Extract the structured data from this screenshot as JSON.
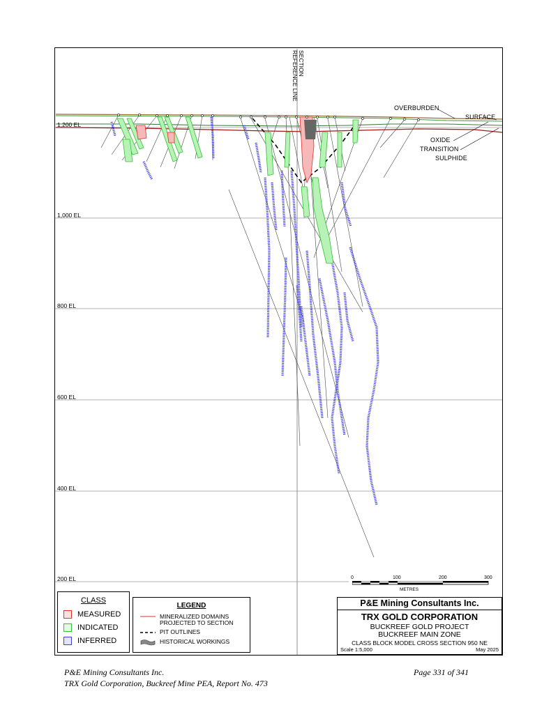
{
  "section": {
    "reference_line_label": [
      "SECTION",
      "REFERENCE LINE"
    ],
    "elevation_labels": [
      "1,200 EL",
      "1,000 EL",
      "800 EL",
      "600 EL",
      "400 EL",
      "200 EL"
    ],
    "surface_labels": {
      "overburden": "OVERBURDEN",
      "surface": "SURFACE",
      "oxide": "OXIDE",
      "transition": "TRANSITION",
      "sulphide": "SULPHIDE"
    }
  },
  "class_legend": {
    "title": "CLASS",
    "items": [
      {
        "label": "MEASURED",
        "color": "#e03030"
      },
      {
        "label": "INDICATED",
        "color": "#30c030"
      },
      {
        "label": "INFERRED",
        "color": "#4040e0"
      }
    ]
  },
  "legend": {
    "title": "LEGEND",
    "items": [
      {
        "label_lines": [
          "MINERALIZED DOMAINS",
          "PROJECTED TO SECTION"
        ],
        "symbol": "red-line"
      },
      {
        "label_lines": [
          "PIT OUTLINES"
        ],
        "symbol": "dashed-line"
      },
      {
        "label_lines": [
          "HISTORICAL WORKINGS"
        ],
        "symbol": "grey-shape"
      }
    ]
  },
  "scale_bar": {
    "ticks": [
      "0",
      "100",
      "200",
      "300"
    ],
    "units": "METRES"
  },
  "title_block": {
    "company": "P&E Mining Consultants Inc.",
    "client": "TRX GOLD CORPORATION",
    "project": "BUCKREEF GOLD PROJECT",
    "zone": "BUCKREEF MAIN ZONE",
    "description": "CLASS BLOCK MODEL CROSS SECTION 950 NE",
    "scale": "Scale 1:5,000",
    "date": "May 2025"
  },
  "footer": {
    "left_line1": "P&E Mining Consultants Inc.",
    "left_line2": "TRX Gold Corporation, Buckreef Mine PEA, Report No. 473",
    "right_line1": "Page 331 of 341"
  },
  "colors": {
    "measured": "#e03030",
    "indicated": "#30c030",
    "inferred": "#4040e0",
    "surface_brown": "#9a6a3a",
    "surface_green": "#3a9a3a",
    "oxide_red": "#a01818"
  }
}
